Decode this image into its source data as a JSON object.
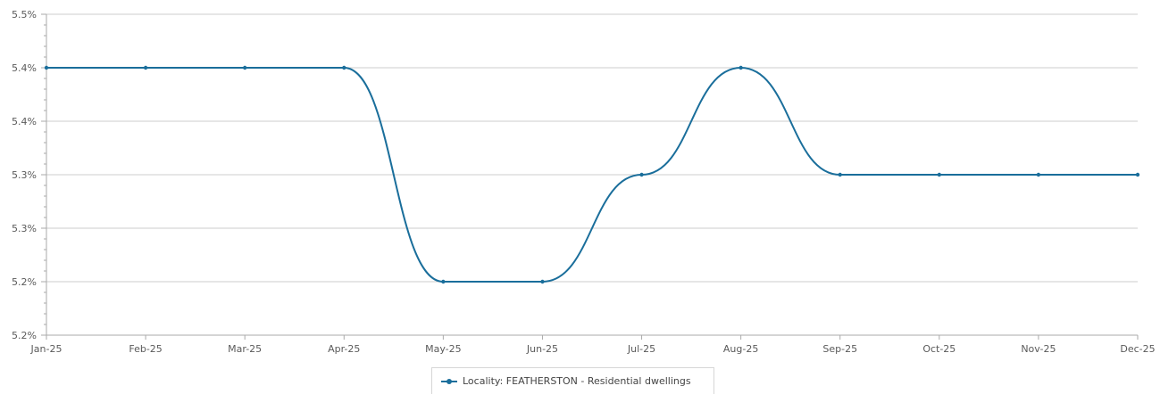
{
  "chart_data": {
    "type": "line",
    "categories": [
      "Jan-25",
      "Feb-25",
      "Mar-25",
      "Apr-25",
      "May-25",
      "Jun-25",
      "Jul-25",
      "Aug-25",
      "Sep-25",
      "Oct-25",
      "Nov-25",
      "Dec-25"
    ],
    "series": [
      {
        "name": "Locality: FEATHERSTON - Residential dwellings",
        "values": [
          5.4,
          5.4,
          5.4,
          5.4,
          5.2,
          5.2,
          5.3,
          5.4,
          5.3,
          5.3,
          5.3,
          5.3
        ],
        "color": "#1a6e9b"
      }
    ],
    "y_tick_labels": [
      "5.5%",
      "5.4%",
      "5.4%",
      "5.3%",
      "5.3%",
      "5.2%",
      "5.2%"
    ],
    "title": "",
    "xlabel": "",
    "ylabel": "",
    "grid": true,
    "legend_position": "bottom-center"
  }
}
